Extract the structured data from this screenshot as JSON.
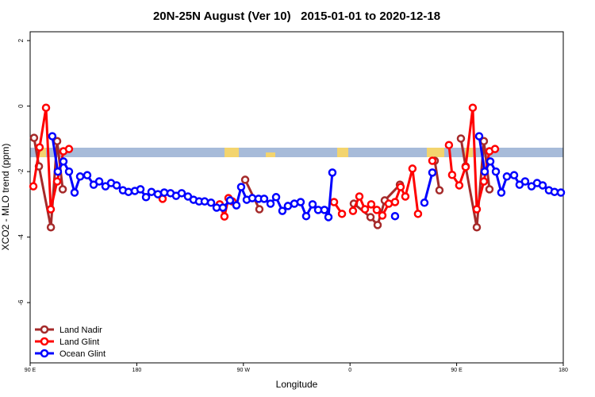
{
  "chart_data": {
    "type": "line",
    "title": "20N-25N August (Ver 10)   2015-01-01 to 2020-12-18",
    "x_label": "Longitude",
    "y_label": "XCO2 - MLO trend (ppm)",
    "xlim": [
      90,
      540
    ],
    "ylim": [
      -7.84,
      2.27
    ],
    "xticks": [
      {
        "value": 90,
        "label": "90 E"
      },
      180,
      {
        "value": 270,
        "label": "90 W"
      },
      {
        "value": 360,
        "label": "0"
      },
      {
        "value": 450,
        "label": "90 E"
      },
      {
        "value": 540,
        "label": "180"
      }
    ],
    "yticks": [
      -6,
      -4,
      -2,
      0,
      2
    ],
    "legend": "bottom-left",
    "series": [
      {
        "name": "Land Nadir",
        "color": "#a52a2a",
        "x": [
          93.3,
          97.4,
          107.5,
          112.8,
          117.5,
          null,
          271.5,
          283.5,
          null,
          363.2,
          377.3,
          383.3,
          389.3,
          402.1,
          null,
          431.5,
          435.5,
          null,
          453.6,
          457.6,
          467.0,
          473.0,
          477.7
        ],
        "values": [
          -0.97,
          -1.84,
          -3.7,
          -1.07,
          -2.54,
          null,
          -2.25,
          -3.15,
          null,
          -2.98,
          -3.39,
          -3.63,
          -2.88,
          -2.4,
          null,
          -1.67,
          -2.57,
          null,
          -0.99,
          -1.84,
          -3.7,
          -1.07,
          -2.54
        ]
      },
      {
        "name": "Land Glint",
        "color": "#ff0000",
        "x": [
          92.7,
          98.0,
          103.4,
          107.4,
          112.8,
          118.1,
          122.8,
          null,
          201.8,
          null,
          250.0,
          254.0,
          257.4,
          260.7,
          null,
          346.5,
          353.2,
          null,
          362.5,
          367.9,
          372.6,
          377.9,
          382.6,
          387.3,
          392.7,
          398.0,
          402.7,
          406.7,
          412.7,
          417.4,
          null,
          429.5,
          null,
          443.5,
          446.2,
          452.2,
          457.6,
          463.6,
          467.0,
          473.0,
          477.7,
          482.4
        ],
        "values": [
          -2.45,
          -1.26,
          -0.05,
          -3.15,
          -2.3,
          -1.38,
          -1.31,
          null,
          -2.83,
          null,
          -3.0,
          -3.37,
          -2.81,
          -2.91,
          null,
          -2.93,
          -3.29,
          null,
          -3.2,
          -2.76,
          -3.15,
          -3.0,
          -3.17,
          -3.34,
          -2.98,
          -2.93,
          -2.47,
          -2.76,
          -1.91,
          -3.29,
          null,
          -1.67,
          null,
          -1.19,
          -2.1,
          -2.42,
          -1.86,
          -0.05,
          -3.15,
          -2.3,
          -1.38,
          -1.31
        ]
      },
      {
        "name": "Ocean Glint",
        "color": "#0000ff",
        "x": [
          108.7,
          113.4,
          118.1,
          122.8,
          127.5,
          132.2,
          138.2,
          143.6,
          148.3,
          153.6,
          158.3,
          163.0,
          168.3,
          173.0,
          178.4,
          183.1,
          187.8,
          192.4,
          197.8,
          203.2,
          208.5,
          213.2,
          217.9,
          223.2,
          227.9,
          232.6,
          237.3,
          242.7,
          247.4,
          252.7,
          258.7,
          264.1,
          268.1,
          272.8,
          277.5,
          282.8,
          287.5,
          292.9,
          297.6,
          302.9,
          307.6,
          313.0,
          318.3,
          323.0,
          328.4,
          333.1,
          338.4,
          341.8,
          345.1,
          null,
          398.0,
          null,
          422.8,
          429.5,
          null,
          469.0,
          473.7,
          478.4,
          483.1,
          487.7,
          492.4,
          498.5,
          503.1,
          507.8,
          513.2,
          517.9,
          522.6,
          527.9,
          532.6,
          538.0
        ],
        "values": [
          -0.92,
          -2.0,
          -1.69,
          -2.0,
          -2.64,
          -2.15,
          -2.11,
          -2.4,
          -2.3,
          -2.45,
          -2.35,
          -2.42,
          -2.57,
          -2.62,
          -2.59,
          -2.54,
          -2.78,
          -2.62,
          -2.69,
          -2.64,
          -2.66,
          -2.74,
          -2.66,
          -2.76,
          -2.86,
          -2.91,
          -2.91,
          -2.95,
          -3.1,
          -3.1,
          -2.88,
          -3.03,
          -2.47,
          -2.86,
          -2.81,
          -2.83,
          -2.83,
          -2.98,
          -2.78,
          -3.2,
          -3.05,
          -2.98,
          -2.93,
          -3.36,
          -3.0,
          -3.17,
          -3.17,
          -3.39,
          -2.03,
          null,
          -3.36,
          null,
          -2.95,
          -2.03,
          null,
          -0.92,
          -2.0,
          -1.69,
          -2.0,
          -2.64,
          -2.15,
          -2.11,
          -2.4,
          -2.3,
          -2.45,
          -2.35,
          -2.42,
          -2.57,
          -2.62,
          -2.64
        ]
      }
    ]
  }
}
